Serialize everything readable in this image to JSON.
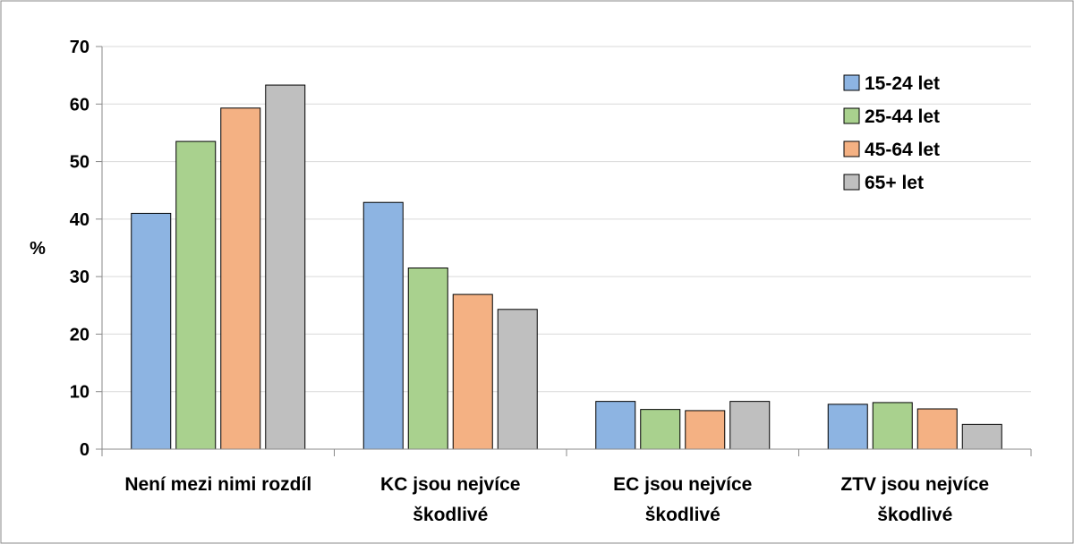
{
  "chart_data": {
    "type": "bar",
    "title": "",
    "xlabel": "",
    "ylabel": "%",
    "ylim": [
      0,
      70
    ],
    "yticks": [
      0,
      10,
      20,
      30,
      40,
      50,
      60,
      70
    ],
    "grid": true,
    "legend_position": "top-right",
    "categories": [
      [
        "Není mezi nimi rozdíl"
      ],
      [
        "KC jsou nejvíce",
        "škodlivé"
      ],
      [
        "EC jsou nejvíce",
        "škodlivé"
      ],
      [
        "ZTV jsou nejvíce",
        "škodlivé"
      ]
    ],
    "series": [
      {
        "name": "15-24 let",
        "color": "#8db4e2",
        "values": [
          41.0,
          42.9,
          8.3,
          7.8
        ]
      },
      {
        "name": "25-44 let",
        "color": "#a9d18e",
        "values": [
          53.5,
          31.5,
          6.9,
          8.1
        ]
      },
      {
        "name": "45-64 let",
        "color": "#f4b183",
        "values": [
          59.3,
          26.9,
          6.7,
          7.0
        ]
      },
      {
        "name": "65+ let",
        "color": "#bfbfbf",
        "values": [
          63.3,
          24.3,
          8.3,
          4.3
        ]
      }
    ]
  }
}
